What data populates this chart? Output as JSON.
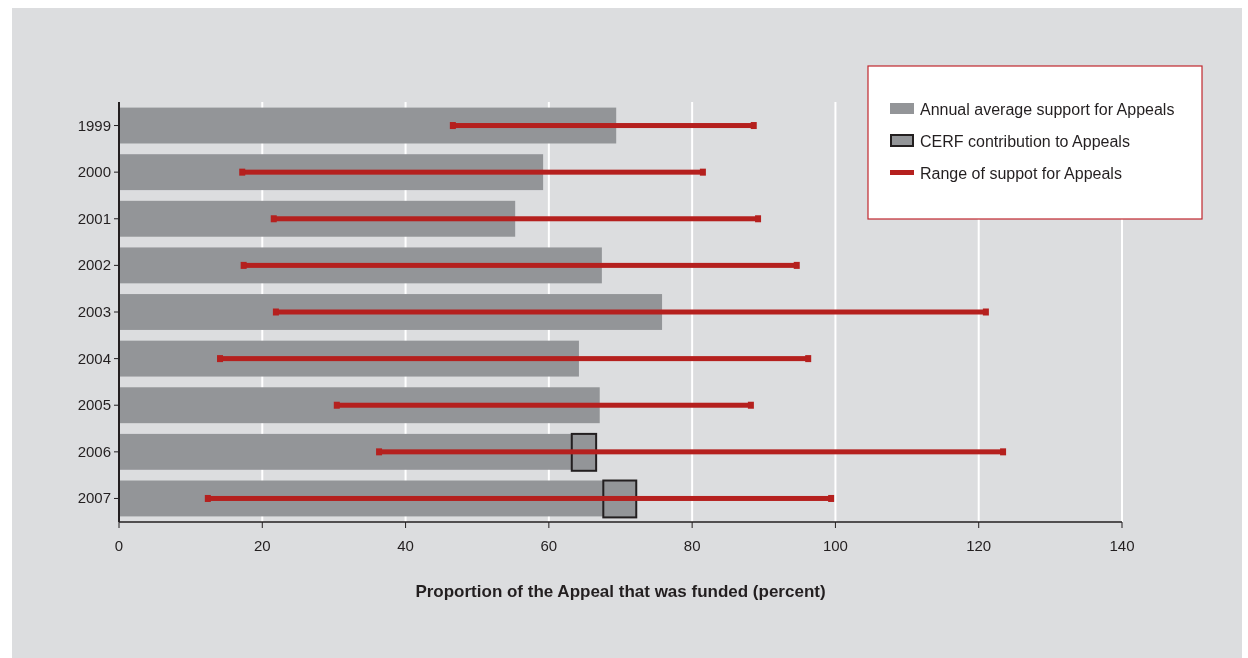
{
  "chart_data": {
    "type": "bar",
    "orientation": "horizontal",
    "xlabel": "Proportion of the Appeal that was funded (percent)",
    "categories": [
      "1999",
      "2000",
      "2001",
      "2002",
      "2003",
      "2004",
      "2005",
      "2006",
      "2007"
    ],
    "series": [
      {
        "name": "Annual average support for Appeals",
        "color": "#939598",
        "values": [
          69.4,
          59.2,
          55.3,
          67.4,
          75.8,
          64.2,
          67.1,
          63.2,
          67.6
        ]
      },
      {
        "name": "CERF contribution to Appeals",
        "color": "#939598",
        "base": [
          null,
          null,
          null,
          null,
          null,
          null,
          null,
          63.2,
          67.6
        ],
        "values": [
          null,
          null,
          null,
          null,
          null,
          null,
          null,
          3.4,
          4.6
        ]
      },
      {
        "name": "Range of suppot for Appeals",
        "color": "#b5201e",
        "base": [
          46.6,
          17.2,
          21.6,
          17.4,
          21.9,
          14.1,
          30.4,
          36.3,
          12.4
        ],
        "values": [
          42.0,
          64.3,
          67.6,
          77.2,
          99.1,
          82.1,
          57.8,
          87.1,
          87.0
        ]
      }
    ],
    "xlim": [
      0,
      140
    ],
    "xticks": [
      0,
      20,
      40,
      60,
      80,
      100,
      120,
      140
    ],
    "grid": "x",
    "legend": "top right"
  }
}
